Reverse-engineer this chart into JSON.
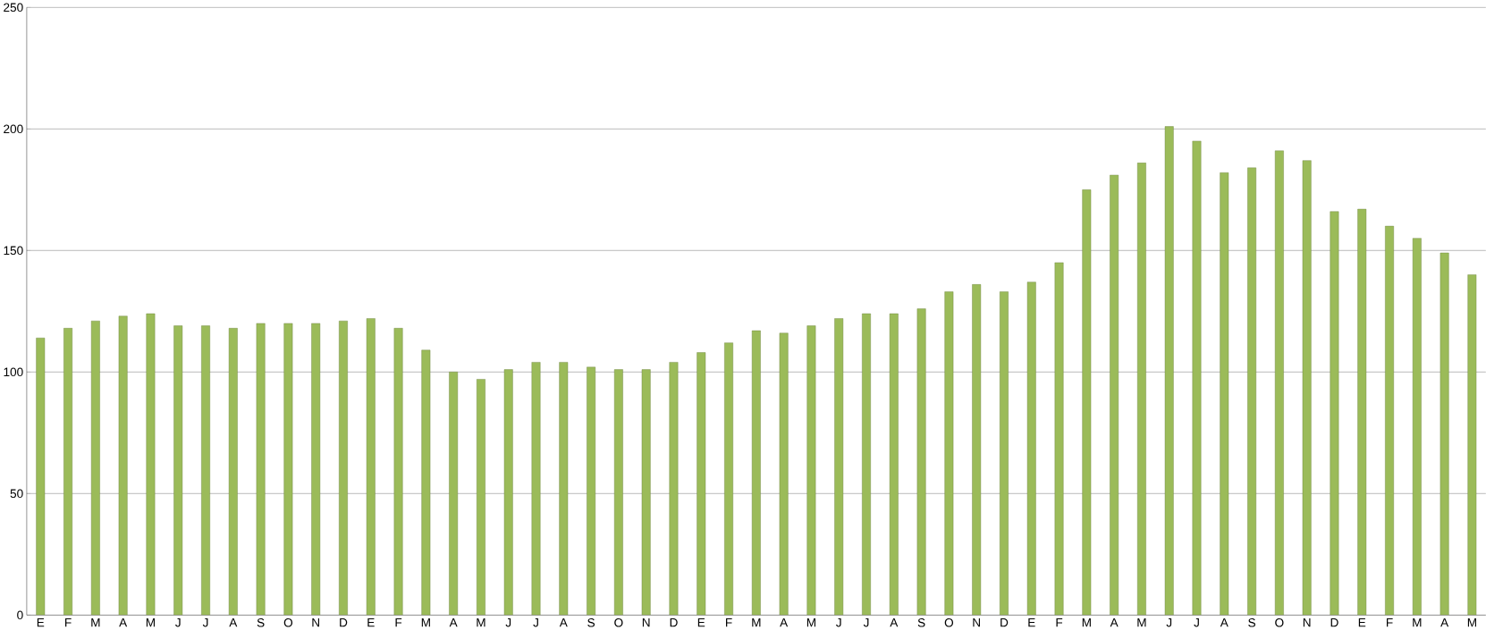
{
  "chart_data": {
    "type": "bar",
    "categories": [
      "E",
      "F",
      "M",
      "A",
      "M",
      "J",
      "J",
      "A",
      "S",
      "O",
      "N",
      "D",
      "E",
      "F",
      "M",
      "A",
      "M",
      "J",
      "J",
      "A",
      "S",
      "O",
      "N",
      "D",
      "E",
      "F",
      "M",
      "A",
      "M",
      "J",
      "J",
      "A",
      "S",
      "O",
      "N",
      "D",
      "E",
      "F",
      "M",
      "A",
      "M",
      "J",
      "J",
      "A",
      "S",
      "O",
      "N",
      "D",
      "E",
      "F",
      "M",
      "A",
      "M"
    ],
    "values": [
      114,
      118,
      121,
      123,
      124,
      119,
      119,
      118,
      120,
      120,
      120,
      121,
      122,
      118,
      109,
      100,
      97,
      101,
      104,
      104,
      102,
      101,
      101,
      104,
      108,
      112,
      117,
      116,
      119,
      122,
      124,
      124,
      126,
      133,
      136,
      133,
      137,
      145,
      175,
      181,
      186,
      201,
      195,
      182,
      184,
      191,
      187,
      166,
      167,
      160,
      155,
      149,
      140
    ],
    "color": "#9bbb59",
    "ylim": [
      0,
      250
    ],
    "yticks": [
      0,
      50,
      100,
      150,
      200,
      250
    ],
    "grid": "y"
  }
}
